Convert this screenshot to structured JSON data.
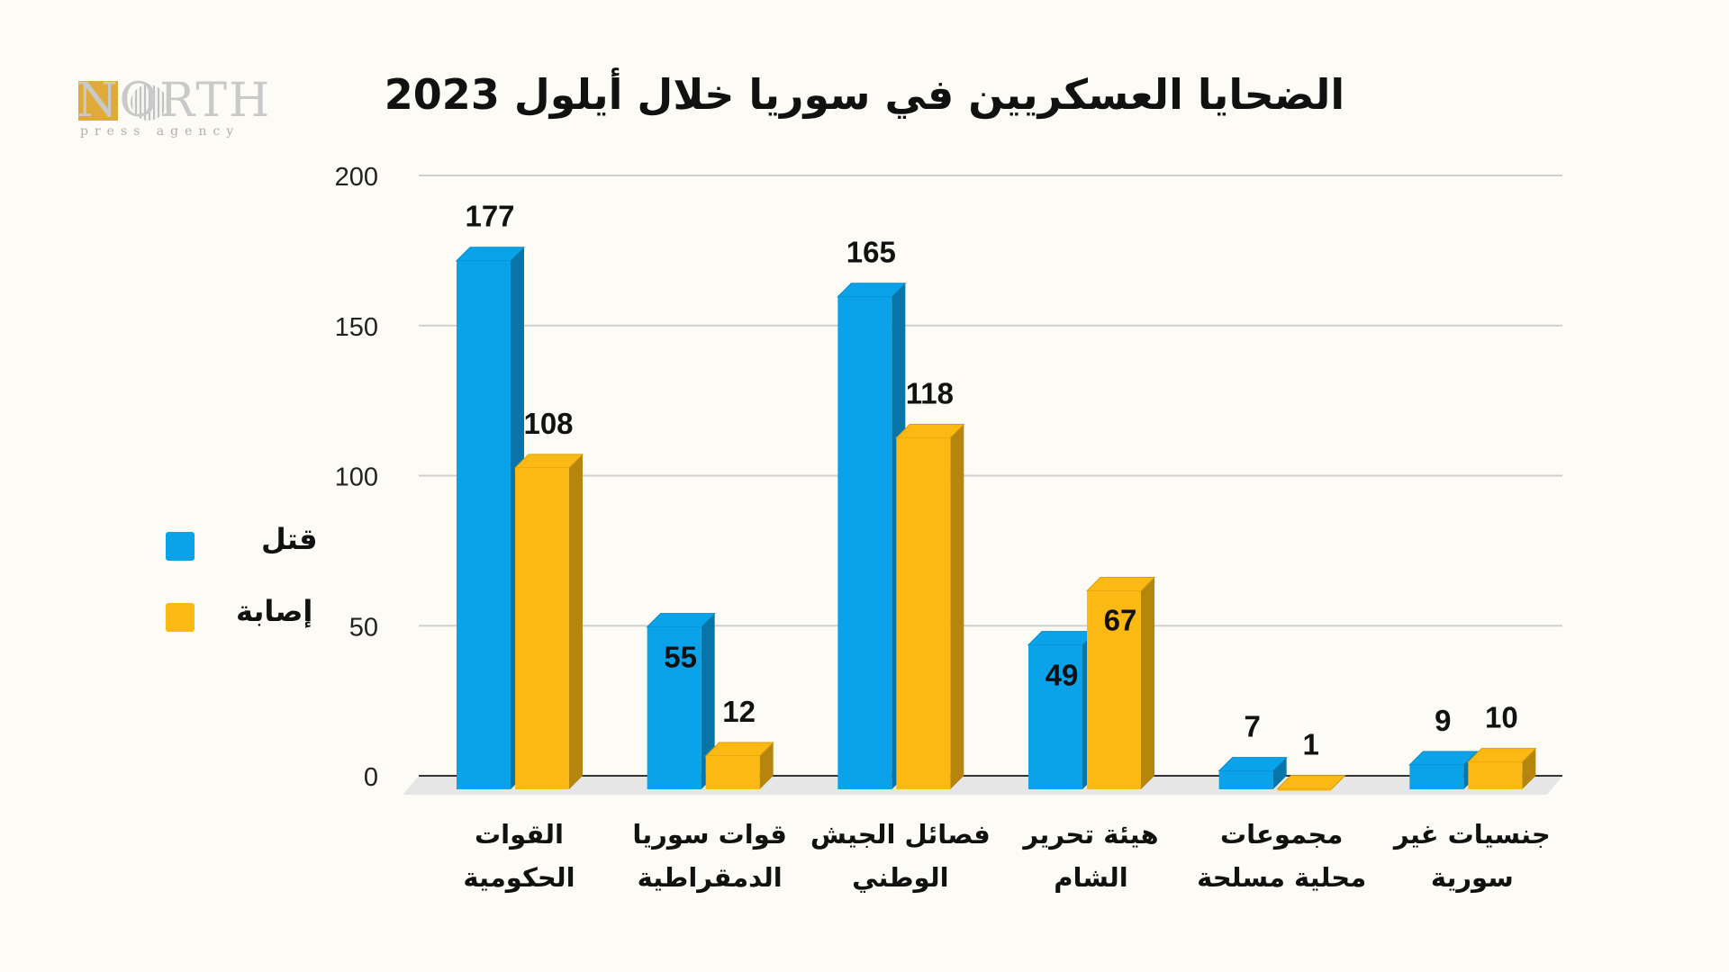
{
  "logo": {
    "word": "NORTH",
    "sub": "press agency"
  },
  "chart_data": {
    "type": "bar",
    "title": "الضحايا العسكريين في سوريا خلال أيلول 2023",
    "categories": [
      [
        "القوات",
        "الحكومية"
      ],
      [
        "قوات سوريا",
        "الدمقراطية"
      ],
      [
        "فصائل الجيش",
        "الوطني"
      ],
      [
        "هيئة تحرير",
        "الشام"
      ],
      [
        "مجموعات",
        "محلية مسلحة"
      ],
      [
        "جنسيات غير",
        "سورية"
      ]
    ],
    "series": [
      {
        "name": "قتل",
        "values": [
          177,
          55,
          165,
          49,
          7,
          9
        ],
        "color": "#0aa2e8"
      },
      {
        "name": "إصابة",
        "values": [
          108,
          12,
          118,
          67,
          1,
          10
        ],
        "color": "#fdb913"
      }
    ],
    "ylim": [
      0,
      200
    ],
    "yticks": [
      0,
      50,
      100,
      150,
      200
    ],
    "grid": true,
    "legend": "left"
  }
}
